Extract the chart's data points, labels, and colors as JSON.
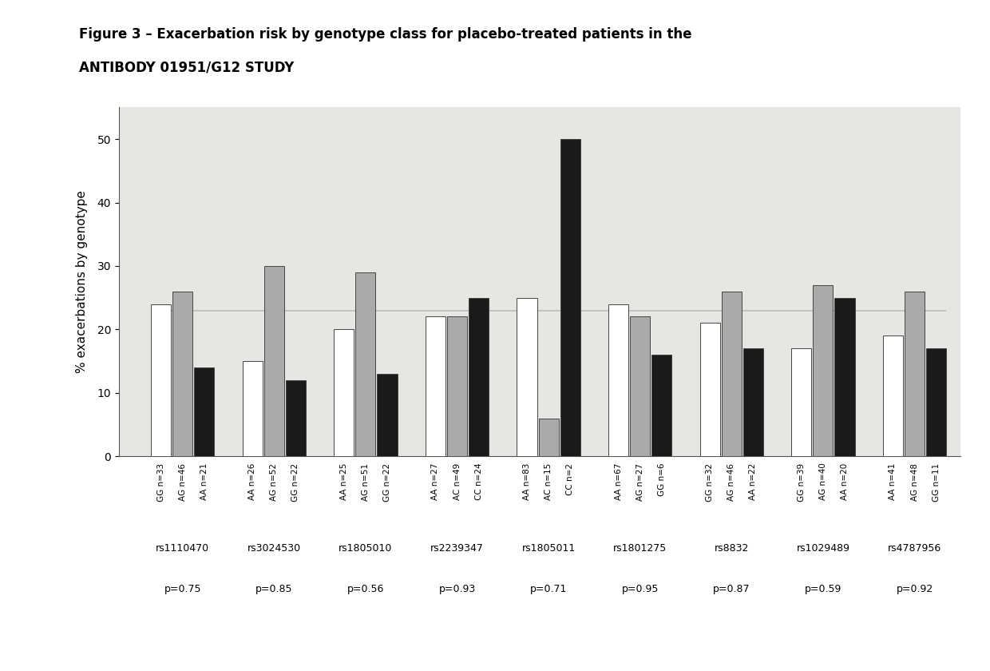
{
  "title_line1": "Figure 3 – Exacerbation risk by genotype class for placebo-treated patients in the",
  "title_line2": "ANTIBODY 01951/G12 STUDY",
  "ylabel": "% exacerbations by genotype",
  "ylim": [
    0,
    55
  ],
  "yticks": [
    0,
    10,
    20,
    30,
    40,
    50
  ],
  "groups": [
    {
      "rs": "rs1110470",
      "pval": "p=0.75",
      "labels": [
        "GG n=33",
        "AG n=46",
        "AA n=21"
      ],
      "values": [
        24,
        26,
        14
      ]
    },
    {
      "rs": "rs3024530",
      "pval": "p=0.85",
      "labels": [
        "AA n=26",
        "AG n=52",
        "GG n=22"
      ],
      "values": [
        15,
        30,
        12
      ]
    },
    {
      "rs": "rs1805010",
      "pval": "p=0.56",
      "labels": [
        "AA n=25",
        "AG n=51",
        "GG n=22"
      ],
      "values": [
        20,
        29,
        13
      ]
    },
    {
      "rs": "rs2239347",
      "pval": "p=0.93",
      "labels": [
        "AA n=27",
        "AC n=49",
        "CC n=24"
      ],
      "values": [
        22,
        22,
        25
      ]
    },
    {
      "rs": "rs1805011",
      "pval": "p=0.71",
      "labels": [
        "AA n=83",
        "AC n=15",
        "CC n=2"
      ],
      "values": [
        25,
        6,
        50
      ]
    },
    {
      "rs": "rs1801275",
      "pval": "p=0.95",
      "labels": [
        "AA n=67",
        "AG n=27",
        "GG n=6"
      ],
      "values": [
        24,
        22,
        16
      ]
    },
    {
      "rs": "rs8832",
      "pval": "p=0.87",
      "labels": [
        "GG n=32",
        "AG n=46",
        "AA n=22"
      ],
      "values": [
        21,
        26,
        17
      ]
    },
    {
      "rs": "rs1029489",
      "pval": "p=0.59",
      "labels": [
        "GG n=39",
        "AG n=40",
        "AA n=20"
      ],
      "values": [
        17,
        27,
        25
      ]
    },
    {
      "rs": "rs4787956",
      "pval": "p=0.92",
      "labels": [
        "AA n=41",
        "AG n=48",
        "GG n=11"
      ],
      "values": [
        19,
        26,
        17
      ]
    }
  ],
  "mean_line_y": 23.0,
  "mean_line_color": "#bbbbbb",
  "bar_white": "#ffffff",
  "bar_gray": "#aaaaaa",
  "bar_black": "#1a1a1a",
  "bar_edge_color": "#444444",
  "plot_bg_color": "#e8e6e2",
  "figure_bg_color": "#ffffff"
}
